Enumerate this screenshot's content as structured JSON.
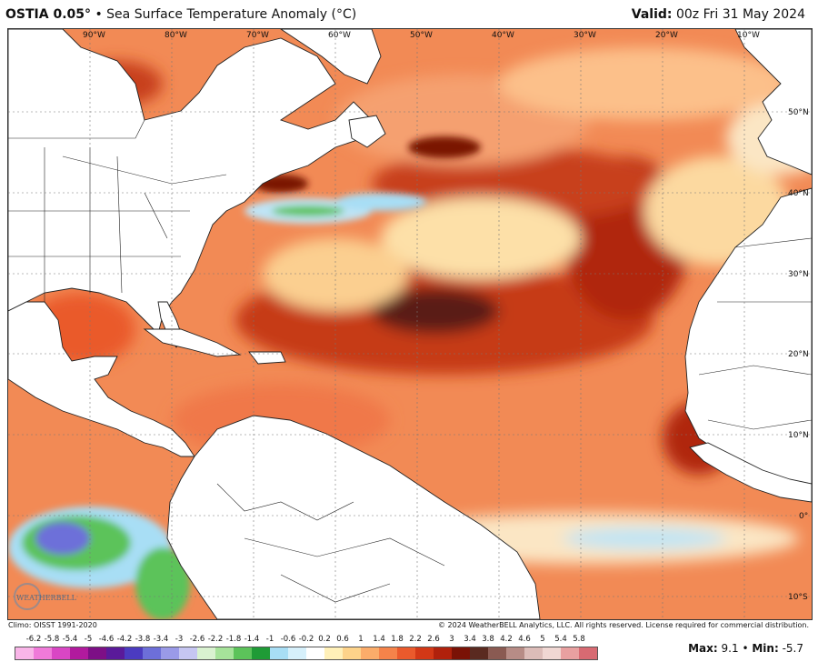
{
  "header": {
    "product": "OSTIA 0.05°",
    "separator": "•",
    "title": "Sea Surface Temperature Anomaly (°C)",
    "valid_label": "Valid:",
    "valid_time": "00z Fri 31 May 2024"
  },
  "map": {
    "longitude_labels": [
      "90°W",
      "80°W",
      "70°W",
      "60°W",
      "50°W",
      "40°W",
      "30°W",
      "20°W",
      "10°W"
    ],
    "latitude_labels": [
      "50°N",
      "40°N",
      "30°N",
      "20°N",
      "10°N",
      "0°",
      "10°S"
    ],
    "logo_text": "WEATHERBELL",
    "ocean_base_color": "#f28a55"
  },
  "footer": {
    "climo": "Climo: OISST 1991-2020",
    "copyright": "© 2024 WeatherBELL Analytics, LLC. All rights reserved. License required for commercial distribution."
  },
  "colorbar": {
    "ticks": [
      "-6.2",
      "-5.8",
      "-5.4",
      "-5",
      "-4.6",
      "-4.2",
      "-3.8",
      "-3.4",
      "-3",
      "-2.6",
      "-2.2",
      "-1.8",
      "-1.4",
      "-1",
      "-0.6",
      "-0.2",
      "0.2",
      "0.6",
      "1",
      "1.4",
      "1.8",
      "2.2",
      "2.6",
      "3",
      "3.4",
      "3.8",
      "4.2",
      "4.6",
      "5",
      "5.4",
      "5.8"
    ],
    "colors": [
      "#f9b5e8",
      "#f07ad9",
      "#d946c4",
      "#b21a9e",
      "#7d0f86",
      "#5a1a9a",
      "#4b3bc0",
      "#6d6fd9",
      "#9a9ae8",
      "#c6c6f2",
      "#d9f2d0",
      "#a6e39a",
      "#5cc35a",
      "#1f9b36",
      "#a8def5",
      "#d6f0fb",
      "#ffffff",
      "#fff0b8",
      "#fdd38a",
      "#fbac6a",
      "#f5834a",
      "#ea5a2c",
      "#d33816",
      "#b0210c",
      "#7a1206",
      "#5a2a20",
      "#8a5a52",
      "#b78c86",
      "#dcbcb8",
      "#f0d7d3",
      "#e8a0a0",
      "#d86a72"
    ]
  },
  "stats": {
    "max_label": "Max:",
    "max_value": "9.1",
    "min_label": "Min:",
    "min_value": "-5.7"
  }
}
